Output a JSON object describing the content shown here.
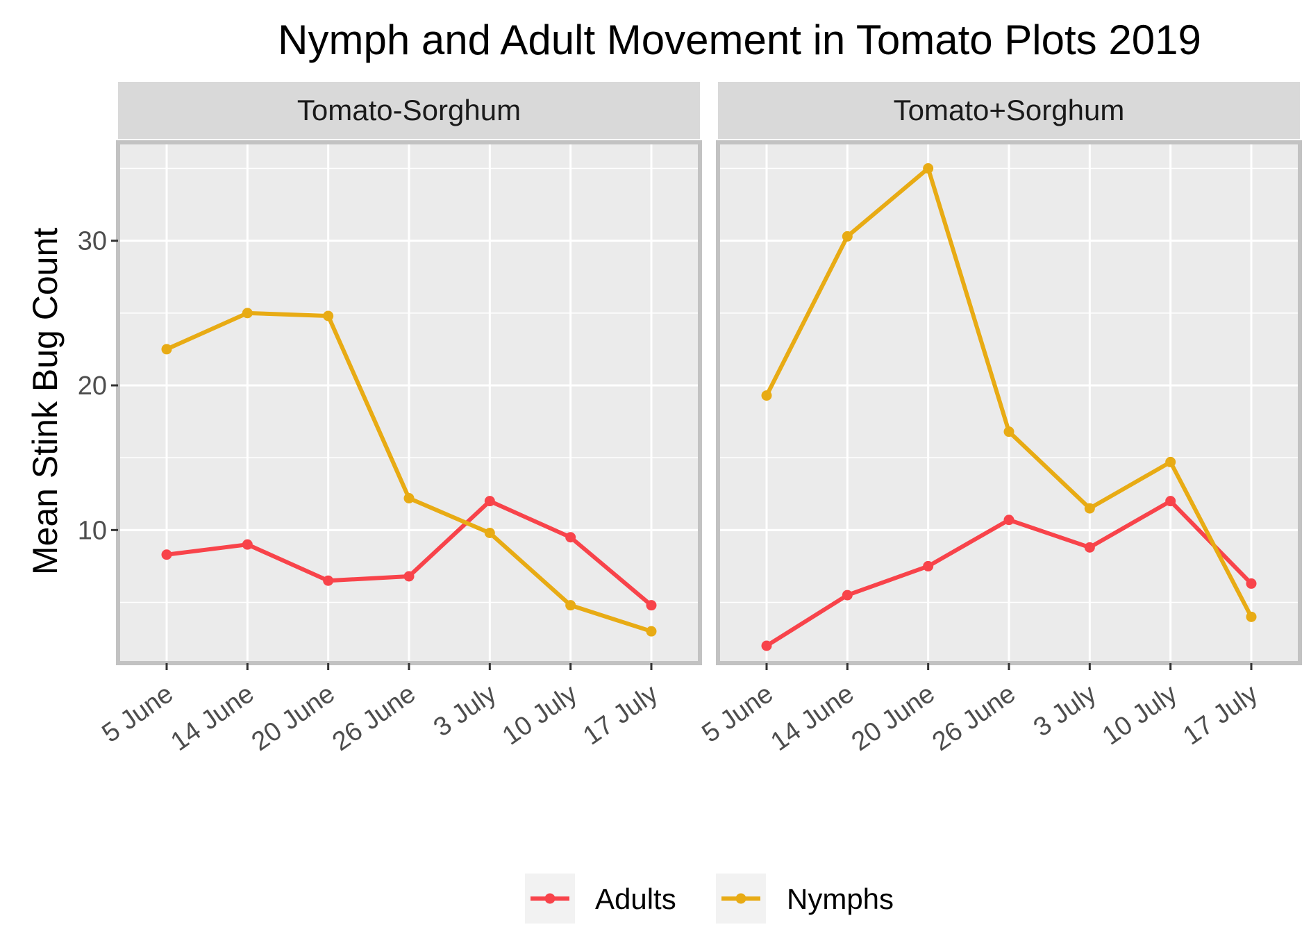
{
  "chart_data": {
    "type": "line",
    "title": "Nymph and Adult Movement in Tomato Plots 2019",
    "xlabel": "",
    "ylabel": "Mean Stink Bug Count",
    "categories": [
      "5 June",
      "14 June",
      "20 June",
      "26 June",
      "3 July",
      "10 July",
      "17 July"
    ],
    "yticks": [
      10,
      20,
      30
    ],
    "ylim": [
      0.8,
      36.8
    ],
    "grid": true,
    "legend_position": "bottom",
    "colors": {
      "Adults": "#f8434a",
      "Nymphs": "#e8ab14"
    },
    "panels": [
      {
        "label": "Tomato-Sorghum",
        "series": [
          {
            "name": "Adults",
            "values": [
              8.3,
              9.0,
              6.5,
              6.8,
              12.0,
              9.5,
              4.8
            ]
          },
          {
            "name": "Nymphs",
            "values": [
              22.5,
              25.0,
              24.8,
              12.2,
              9.8,
              4.8,
              3.0
            ]
          }
        ]
      },
      {
        "label": "Tomato+Sorghum",
        "series": [
          {
            "name": "Adults",
            "values": [
              2.0,
              5.5,
              7.5,
              10.7,
              8.8,
              12.0,
              6.3
            ]
          },
          {
            "name": "Nymphs",
            "values": [
              19.3,
              30.3,
              35.0,
              16.8,
              11.5,
              14.7,
              4.0
            ]
          }
        ]
      }
    ],
    "legend": [
      {
        "label": "Adults"
      },
      {
        "label": "Nymphs"
      }
    ]
  }
}
